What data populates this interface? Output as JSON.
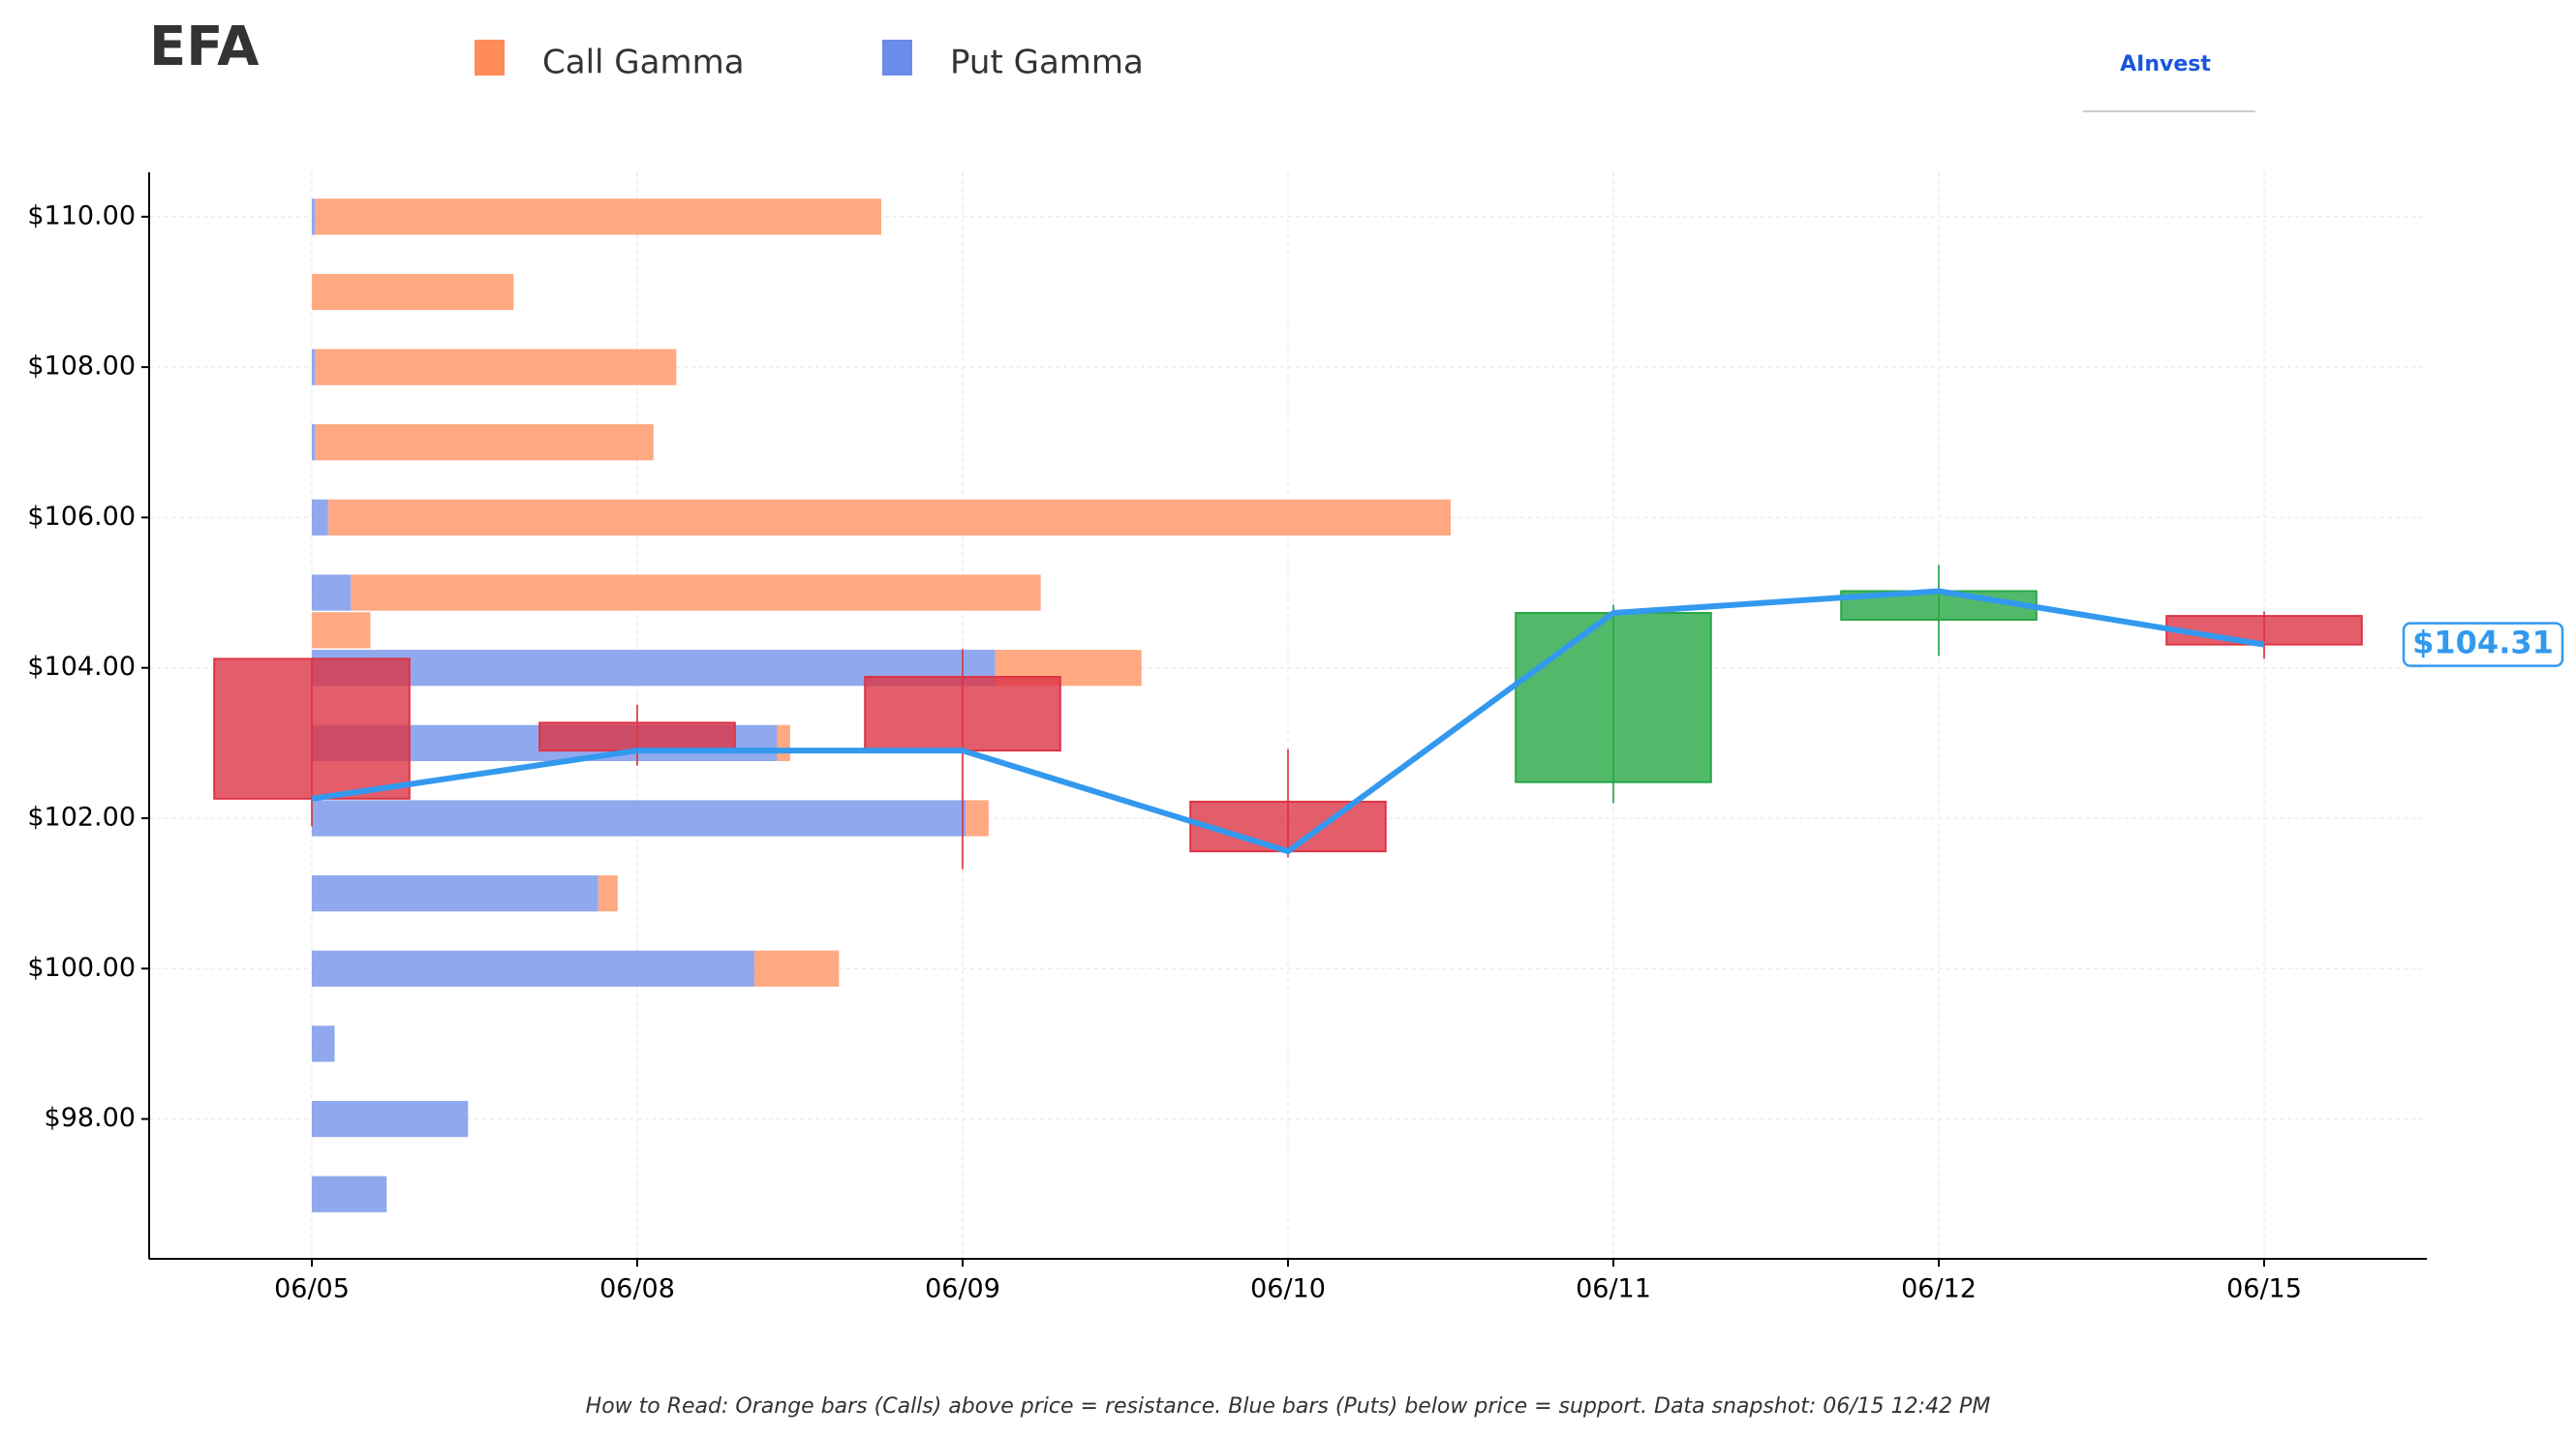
{
  "chart_data": {
    "type": "candlestick",
    "title": "EFA",
    "logo": "AInvest",
    "footnote": "How to Read: Orange bars (Calls) above price = resistance. Blue bars (Puts) below price = support. Data snapshot: 06/15 12:42 PM",
    "categories": [
      "06/05",
      "06/08",
      "06/09",
      "06/10",
      "06/11",
      "06/12",
      "06/15"
    ],
    "open": [
      104.12,
      103.27,
      103.88,
      102.22,
      102.48,
      104.64,
      104.69
    ],
    "high": [
      104.12,
      103.51,
      104.25,
      102.92,
      104.84,
      105.37,
      104.75
    ],
    "low": [
      101.89,
      102.7,
      101.32,
      101.48,
      102.2,
      104.16,
      104.12
    ],
    "close": [
      102.26,
      102.9,
      102.9,
      101.56,
      104.73,
      105.02,
      104.31
    ],
    "last_close_label": "$104.31",
    "up_color": "#28a745",
    "down_color": "#dc3545",
    "line_color": "#3399ee",
    "ylim": [
      96.14,
      110.59
    ],
    "yticks": [
      {
        "value": 98,
        "label": "$98.00"
      },
      {
        "value": 100,
        "label": "$100.00"
      },
      {
        "value": 102,
        "label": "$102.00"
      },
      {
        "value": 104,
        "label": "$104.00"
      },
      {
        "value": 106,
        "label": "$106.00"
      },
      {
        "value": 108,
        "label": "$108.00"
      },
      {
        "value": 110,
        "label": "$110.00"
      }
    ],
    "grid": true,
    "gamma_bars": {
      "strikes": [
        110,
        109,
        108,
        107,
        106,
        105,
        104.5,
        104,
        103,
        102,
        101,
        100,
        99,
        98,
        97
      ],
      "series": [
        {
          "name": "Put Gamma",
          "color": "#6b8ce8",
          "values": [
            0.01,
            0,
            0.01,
            0.01,
            0.05,
            0.12,
            0,
            2.1,
            1.43,
            2.01,
            0.88,
            1.36,
            0.07,
            0.48,
            0.23
          ]
        },
        {
          "name": "Call Gamma",
          "color": "#ff8c5a",
          "values": [
            1.74,
            0.62,
            1.11,
            1.04,
            3.45,
            2.12,
            0.18,
            0.45,
            0.04,
            0.07,
            0.06,
            0.26,
            0,
            0,
            0
          ]
        }
      ]
    }
  }
}
